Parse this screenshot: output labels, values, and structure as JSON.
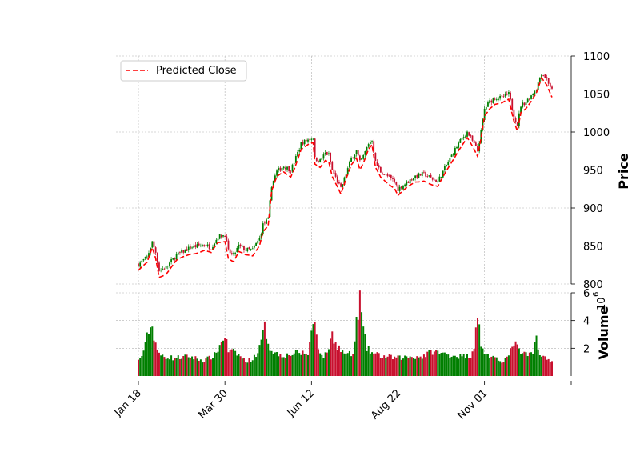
{
  "chart_data": {
    "type": "candlestick",
    "title": "",
    "price_panel": {
      "ylabel": "Price",
      "ylim": [
        800,
        1100
      ],
      "yticks": [
        800,
        850,
        900,
        950,
        1000,
        1050,
        1100
      ],
      "grid": true
    },
    "volume_panel": {
      "ylabel": "Volume",
      "multiplier_label": "10",
      "multiplier_exponent": "6",
      "ylim": [
        0,
        6
      ],
      "yticks": [
        2,
        4,
        6
      ],
      "grid": true
    },
    "x_axis": {
      "tick_labels": [
        "Jan 18",
        "Mar 30",
        "Jun 12",
        "Aug 22",
        "Nov 01"
      ],
      "tick_index": [
        0,
        50,
        100,
        150,
        200
      ],
      "n_bars": 240
    },
    "legend": {
      "position": "top-left",
      "entries": [
        "Predicted Close"
      ]
    },
    "colors": {
      "up": "#007f00",
      "down": "#c8102e",
      "predicted_line": "#ff0000",
      "grid": "#b0b0b0"
    },
    "price_anchors": [
      [
        0,
        826
      ],
      [
        5,
        835
      ],
      [
        8,
        855
      ],
      [
        10,
        842
      ],
      [
        12,
        818
      ],
      [
        16,
        822
      ],
      [
        22,
        838
      ],
      [
        30,
        848
      ],
      [
        38,
        852
      ],
      [
        42,
        848
      ],
      [
        46,
        862
      ],
      [
        50,
        865
      ],
      [
        52,
        843
      ],
      [
        55,
        838
      ],
      [
        58,
        850
      ],
      [
        62,
        845
      ],
      [
        66,
        845
      ],
      [
        70,
        860
      ],
      [
        72,
        878
      ],
      [
        75,
        885
      ],
      [
        77,
        930
      ],
      [
        80,
        948
      ],
      [
        84,
        955
      ],
      [
        88,
        950
      ],
      [
        90,
        960
      ],
      [
        94,
        985
      ],
      [
        98,
        990
      ],
      [
        101,
        993
      ],
      [
        102,
        965
      ],
      [
        105,
        962
      ],
      [
        108,
        972
      ],
      [
        110,
        970
      ],
      [
        112,
        950
      ],
      [
        115,
        935
      ],
      [
        117,
        925
      ],
      [
        120,
        945
      ],
      [
        123,
        965
      ],
      [
        126,
        975
      ],
      [
        128,
        960
      ],
      [
        130,
        968
      ],
      [
        133,
        985
      ],
      [
        135,
        990
      ],
      [
        137,
        960
      ],
      [
        140,
        948
      ],
      [
        145,
        940
      ],
      [
        148,
        935
      ],
      [
        150,
        925
      ],
      [
        153,
        930
      ],
      [
        156,
        935
      ],
      [
        160,
        942
      ],
      [
        165,
        945
      ],
      [
        170,
        938
      ],
      [
        173,
        935
      ],
      [
        176,
        948
      ],
      [
        180,
        965
      ],
      [
        185,
        985
      ],
      [
        190,
        1000
      ],
      [
        193,
        988
      ],
      [
        196,
        975
      ],
      [
        198,
        1000
      ],
      [
        200,
        1030
      ],
      [
        203,
        1040
      ],
      [
        206,
        1045
      ],
      [
        210,
        1045
      ],
      [
        214,
        1050
      ],
      [
        217,
        1022
      ],
      [
        219,
        1010
      ],
      [
        221,
        1035
      ],
      [
        224,
        1040
      ],
      [
        227,
        1048
      ],
      [
        230,
        1058
      ],
      [
        233,
        1078
      ],
      [
        236,
        1070
      ],
      [
        239,
        1055
      ]
    ],
    "volume_anchors": [
      [
        0,
        1.1
      ],
      [
        2,
        1.5
      ],
      [
        4,
        2.2
      ],
      [
        6,
        3.4
      ],
      [
        8,
        3.5
      ],
      [
        10,
        2.4
      ],
      [
        12,
        1.5
      ],
      [
        20,
        1.3
      ],
      [
        30,
        1.4
      ],
      [
        38,
        1.1
      ],
      [
        44,
        1.5
      ],
      [
        48,
        2.4
      ],
      [
        50,
        3.0
      ],
      [
        52,
        1.8
      ],
      [
        56,
        1.7
      ],
      [
        62,
        1.1
      ],
      [
        66,
        1.2
      ],
      [
        70,
        2.0
      ],
      [
        73,
        3.5
      ],
      [
        76,
        2.0
      ],
      [
        80,
        1.6
      ],
      [
        86,
        1.5
      ],
      [
        92,
        1.7
      ],
      [
        98,
        1.6
      ],
      [
        100,
        3.2
      ],
      [
        102,
        4.0
      ],
      [
        104,
        2.2
      ],
      [
        106,
        1.4
      ],
      [
        108,
        1.5
      ],
      [
        110,
        2.1
      ],
      [
        112,
        3.0
      ],
      [
        114,
        2.4
      ],
      [
        118,
        1.7
      ],
      [
        124,
        1.5
      ],
      [
        126,
        3.8
      ],
      [
        128,
        5.6
      ],
      [
        130,
        3.3
      ],
      [
        132,
        2.0
      ],
      [
        136,
        1.6
      ],
      [
        142,
        1.4
      ],
      [
        150,
        1.3
      ],
      [
        158,
        1.4
      ],
      [
        164,
        1.4
      ],
      [
        170,
        1.8
      ],
      [
        176,
        1.6
      ],
      [
        182,
        1.5
      ],
      [
        188,
        1.4
      ],
      [
        192,
        1.5
      ],
      [
        194,
        2.2
      ],
      [
        196,
        4.8
      ],
      [
        198,
        2.0
      ],
      [
        202,
        1.5
      ],
      [
        206,
        1.2
      ],
      [
        210,
        1.1
      ],
      [
        214,
        1.4
      ],
      [
        217,
        2.5
      ],
      [
        220,
        1.8
      ],
      [
        224,
        1.5
      ],
      [
        228,
        1.6
      ],
      [
        230,
        3.0
      ],
      [
        232,
        1.5
      ],
      [
        236,
        1.2
      ],
      [
        239,
        1.1
      ]
    ]
  }
}
